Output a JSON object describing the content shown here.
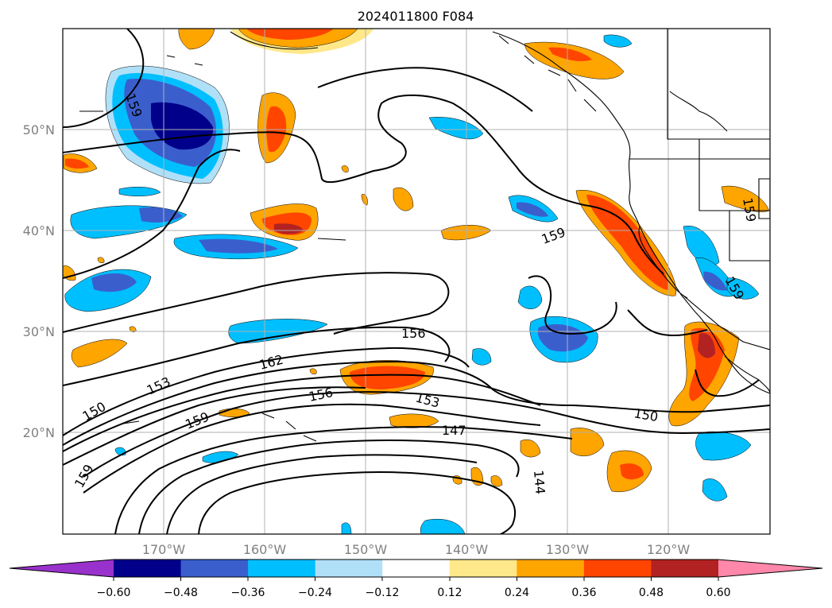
{
  "map": {
    "title": "2024011800 F084",
    "lat_labels": [
      "50°N",
      "40°N",
      "30°N",
      "20°N"
    ],
    "lon_labels": [
      "170°W",
      "160°W",
      "150°W",
      "140°W",
      "130°W",
      "120°W"
    ],
    "contour_labels": [
      "159",
      "159",
      "159",
      "159",
      "156",
      "156",
      "162",
      "153",
      "153",
      "150",
      "150",
      "159",
      "147",
      "144",
      "159"
    ]
  },
  "colorbar": {
    "ticks": [
      "−0.60",
      "−0.48",
      "−0.36",
      "−0.24",
      "−0.12",
      "0.12",
      "0.24",
      "0.36",
      "0.48",
      "0.60"
    ],
    "colors": [
      "#9932cc",
      "#00008b",
      "#3a5fcd",
      "#00bfff",
      "#b0e0f8",
      "#ffffff",
      "#ffe88a",
      "#ffa500",
      "#ff4500",
      "#b22222",
      "#ff88aa"
    ]
  }
}
